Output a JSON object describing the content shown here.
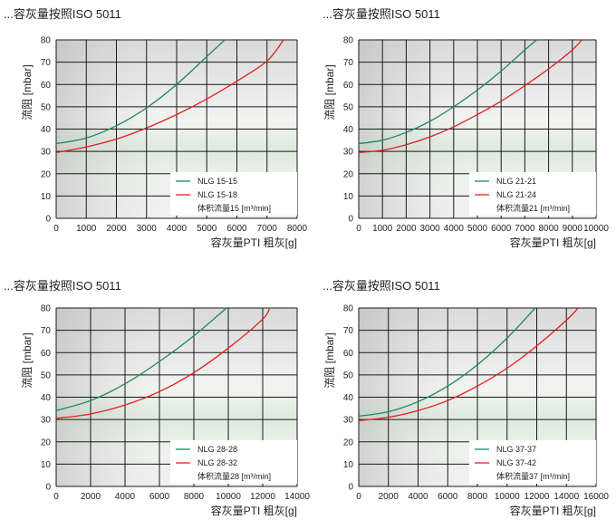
{
  "chart_data": [
    {
      "type": "line",
      "title": "...容灰量按照ISO 5011",
      "xlabel": "容灰量PTI 粗灰[g]",
      "ylabel": "流阻 [mbar]",
      "xlim": [
        0,
        8000
      ],
      "ylim": [
        0,
        80
      ],
      "xticks": [
        0,
        1000,
        2000,
        3000,
        4000,
        5000,
        6000,
        7000,
        8000
      ],
      "yticks": [
        0,
        10,
        20,
        30,
        40,
        50,
        60,
        70,
        80
      ],
      "grid": true,
      "legend": "bottom-right",
      "volume_flow": "体积流量15 [m³/min]",
      "series": [
        {
          "name": "NLG 15-15",
          "color": "#1a8a5a",
          "x": [
            0,
            1000,
            2000,
            3000,
            4000,
            5000,
            5600
          ],
          "y": [
            33.5,
            36,
            41.5,
            49.5,
            60,
            72.5,
            80
          ]
        },
        {
          "name": "NLG 15-18",
          "color": "#e02020",
          "x": [
            0,
            1000,
            2000,
            3000,
            4000,
            5000,
            6000,
            7000,
            7550
          ],
          "y": [
            29.5,
            32,
            35.5,
            40.5,
            46.5,
            53.5,
            61.5,
            70.5,
            80
          ]
        }
      ]
    },
    {
      "type": "line",
      "title": "...容灰量按照ISO 5011",
      "xlabel": "容灰量PTI 粗灰[g]",
      "ylabel": "流阻 [mbar]",
      "xlim": [
        0,
        10000
      ],
      "ylim": [
        0,
        80
      ],
      "xticks": [
        0,
        1000,
        2000,
        3000,
        4000,
        5000,
        6000,
        7000,
        8000,
        9000,
        10000
      ],
      "yticks": [
        0,
        10,
        20,
        30,
        40,
        50,
        60,
        70,
        80
      ],
      "grid": true,
      "legend": "bottom-right",
      "volume_flow": "体积流量21 [m³/min]",
      "series": [
        {
          "name": "NLG 21-21",
          "color": "#1a8a5a",
          "x": [
            0,
            1000,
            2000,
            3000,
            4000,
            5000,
            6000,
            7000,
            7500
          ],
          "y": [
            33.5,
            35,
            38.5,
            43.5,
            50,
            57.5,
            66,
            75.5,
            80
          ]
        },
        {
          "name": "NLG 21-24",
          "color": "#e02020",
          "x": [
            0,
            1000,
            2000,
            3000,
            4000,
            5000,
            6000,
            7000,
            8000,
            9000,
            9400
          ],
          "y": [
            29.5,
            30.5,
            33,
            36.5,
            41,
            46.5,
            52.5,
            59.5,
            67,
            75.5,
            80
          ]
        }
      ]
    },
    {
      "type": "line",
      "title": "...容灰量按照ISO 5011",
      "xlabel": "容灰量PTI 粗灰[g]",
      "ylabel": "流阻 [mbar]",
      "xlim": [
        0,
        14000
      ],
      "ylim": [
        0,
        80
      ],
      "xticks": [
        0,
        2000,
        4000,
        6000,
        8000,
        10000,
        12000,
        14000
      ],
      "yticks": [
        0,
        10,
        20,
        30,
        40,
        50,
        60,
        70,
        80
      ],
      "grid": true,
      "legend": "bottom-right",
      "volume_flow": "体积流量28 [m³/min]",
      "series": [
        {
          "name": "NLG 28-28",
          "color": "#1a8a5a",
          "x": [
            0,
            2000,
            4000,
            6000,
            8000,
            9900
          ],
          "y": [
            34,
            38.5,
            46,
            56,
            67.5,
            80
          ]
        },
        {
          "name": "NLG 28-32",
          "color": "#e02020",
          "x": [
            0,
            2000,
            4000,
            6000,
            8000,
            10000,
            12000,
            12400
          ],
          "y": [
            30.5,
            32.5,
            36.5,
            42.5,
            51,
            62,
            75,
            80
          ]
        }
      ]
    },
    {
      "type": "line",
      "title": "...容灰量按照ISO 5011",
      "xlabel": "容灰量PTI 粗灰[g]",
      "ylabel": "流阻 [mbar]",
      "xlim": [
        0,
        16000
      ],
      "ylim": [
        0,
        80
      ],
      "xticks": [
        0,
        2000,
        4000,
        6000,
        8000,
        10000,
        12000,
        14000,
        16000
      ],
      "yticks": [
        0,
        10,
        20,
        30,
        40,
        50,
        60,
        70,
        80
      ],
      "grid": true,
      "legend": "bottom-right",
      "volume_flow": "体积流量37 [m³/min]",
      "series": [
        {
          "name": "NLG 37-37",
          "color": "#1a8a5a",
          "x": [
            0,
            2000,
            4000,
            6000,
            8000,
            10000,
            11900
          ],
          "y": [
            31.5,
            33.5,
            38,
            45,
            54.5,
            66.5,
            80
          ]
        },
        {
          "name": "NLG 37-42",
          "color": "#e02020",
          "x": [
            0,
            2000,
            4000,
            6000,
            8000,
            10000,
            12000,
            14000,
            14800
          ],
          "y": [
            29.5,
            31,
            34,
            38.5,
            45,
            53,
            63,
            74.5,
            80
          ]
        }
      ]
    }
  ]
}
